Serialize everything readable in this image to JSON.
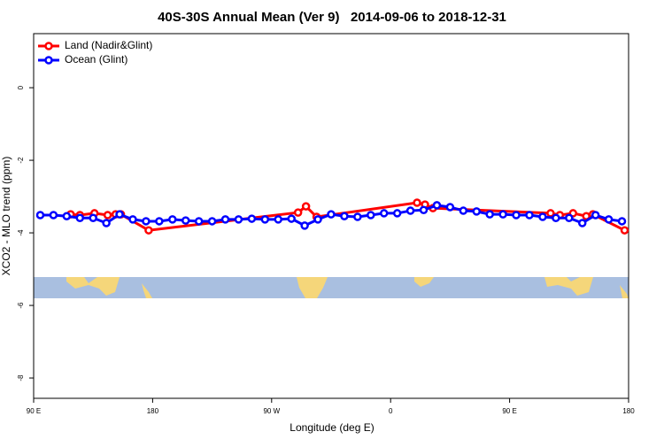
{
  "chart_data": {
    "type": "line",
    "title": "40S-30S Annual Mean (Ver 9)   2014-09-06 to 2018-12-31",
    "x_label": "Longitude (deg E)",
    "y_label": "XCO2 - MLO trend (ppm)",
    "xlim": [
      90,
      540
    ],
    "ylim": [
      -8.56,
      1.49
    ],
    "xticks": [
      {
        "value": 90,
        "label": "90 E"
      },
      180,
      {
        "value": 270,
        "label": "90 W"
      },
      {
        "value": 360,
        "label": "0"
      },
      {
        "value": 450,
        "label": "90 E"
      },
      {
        "value": 540,
        "label": "180"
      }
    ],
    "yticks": [
      0,
      -2,
      -4,
      -6,
      -8
    ],
    "legend": "top-left",
    "series": [
      {
        "name": "Land (Nadir&Glint)",
        "color": "#ff0000",
        "x": [
          118,
          125,
          136,
          146,
          152,
          156,
          177,
          290,
          296,
          304,
          380,
          386,
          392,
          481,
          488,
          498,
          508,
          513,
          537
        ],
        "values": [
          -3.49,
          -3.51,
          -3.46,
          -3.51,
          -3.49,
          -3.49,
          -3.93,
          -3.44,
          -3.27,
          -3.56,
          -3.17,
          -3.22,
          -3.32,
          -3.46,
          -3.51,
          -3.46,
          -3.54,
          -3.49,
          -3.93
        ]
      },
      {
        "name": "Ocean (Glint)",
        "color": "#0000ff",
        "x": [
          95,
          105,
          115,
          125,
          135,
          145,
          155,
          165,
          175,
          185,
          195,
          205,
          215,
          225,
          235,
          245,
          255,
          265,
          275,
          285,
          295,
          305,
          315,
          325,
          335,
          345,
          355,
          365,
          375,
          385,
          395,
          405,
          415,
          425,
          435,
          445,
          455,
          465,
          475,
          485,
          495,
          505,
          515,
          525,
          535
        ],
        "values": [
          -3.51,
          -3.51,
          -3.54,
          -3.59,
          -3.59,
          -3.73,
          -3.49,
          -3.63,
          -3.68,
          -3.68,
          -3.63,
          -3.66,
          -3.68,
          -3.68,
          -3.63,
          -3.63,
          -3.61,
          -3.63,
          -3.63,
          -3.61,
          -3.8,
          -3.63,
          -3.49,
          -3.54,
          -3.56,
          -3.51,
          -3.46,
          -3.46,
          -3.39,
          -3.37,
          -3.24,
          -3.29,
          -3.39,
          -3.41,
          -3.49,
          -3.49,
          -3.51,
          -3.51,
          -3.56,
          -3.59,
          -3.59,
          -3.73,
          -3.51,
          -3.63,
          -3.68
        ]
      }
    ]
  }
}
